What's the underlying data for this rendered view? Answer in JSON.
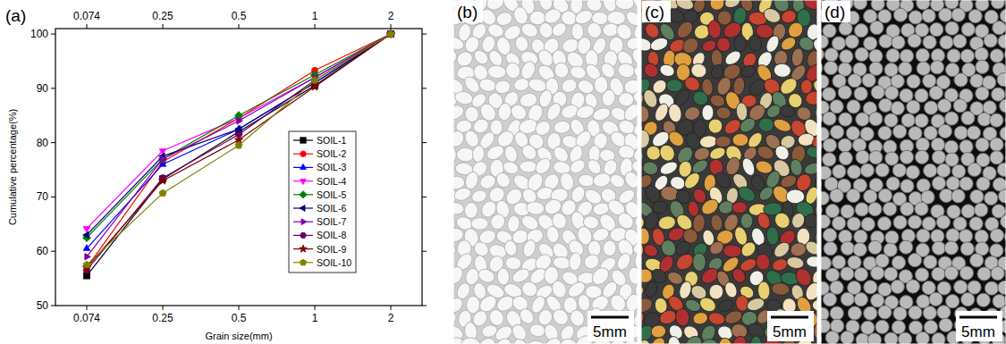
{
  "chart_data": {
    "type": "line",
    "annotations": [
      "(a)"
    ],
    "x_label": "Grain size(mm)",
    "y_label": "Cumulative percentage(%)",
    "categories": [
      "0.074",
      "0.25",
      "0.5",
      "1",
      "2"
    ],
    "ylim": [
      50,
      101
    ],
    "yticks": [
      50,
      60,
      70,
      80,
      90,
      100
    ],
    "grid": false,
    "legend": "right",
    "series": [
      {
        "name": "SOIL-1",
        "color": "#000000",
        "marker": "square",
        "values": [
          55.5,
          73.3,
          82.0,
          90.5,
          100
        ]
      },
      {
        "name": "SOIL-2",
        "color": "#ff0000",
        "marker": "circle",
        "values": [
          57.0,
          76.5,
          84.5,
          93.3,
          100
        ]
      },
      {
        "name": "SOIL-3",
        "color": "#0000ff",
        "marker": "triangle-up",
        "values": [
          60.5,
          76.0,
          82.5,
          91.0,
          100
        ]
      },
      {
        "name": "SOIL-4",
        "color": "#ff00ff",
        "marker": "triangle-down",
        "values": [
          64.2,
          78.5,
          84.5,
          92.0,
          100
        ]
      },
      {
        "name": "SOIL-5",
        "color": "#008000",
        "marker": "diamond",
        "values": [
          62.5,
          77.0,
          85.0,
          92.5,
          100
        ]
      },
      {
        "name": "SOIL-6",
        "color": "#000080",
        "marker": "triangle-left",
        "values": [
          63.0,
          77.5,
          82.5,
          91.0,
          100
        ]
      },
      {
        "name": "SOIL-7",
        "color": "#7b00a8",
        "marker": "triangle-right",
        "values": [
          59.0,
          77.0,
          84.0,
          92.0,
          100
        ]
      },
      {
        "name": "SOIL-8",
        "color": "#660066",
        "marker": "hexagon",
        "values": [
          56.5,
          73.5,
          81.5,
          91.5,
          100
        ]
      },
      {
        "name": "SOIL-9",
        "color": "#800000",
        "marker": "star",
        "values": [
          57.0,
          73.0,
          80.5,
          90.3,
          100
        ]
      },
      {
        "name": "SOIL-10",
        "color": "#808000",
        "marker": "pentagon",
        "values": [
          57.5,
          70.7,
          79.5,
          91.5,
          100
        ]
      }
    ]
  },
  "photos": [
    {
      "label": "(b)",
      "scale_bar": "5mm"
    },
    {
      "label": "(c)",
      "scale_bar": "5mm"
    },
    {
      "label": "(d)",
      "scale_bar": "5mm"
    }
  ]
}
